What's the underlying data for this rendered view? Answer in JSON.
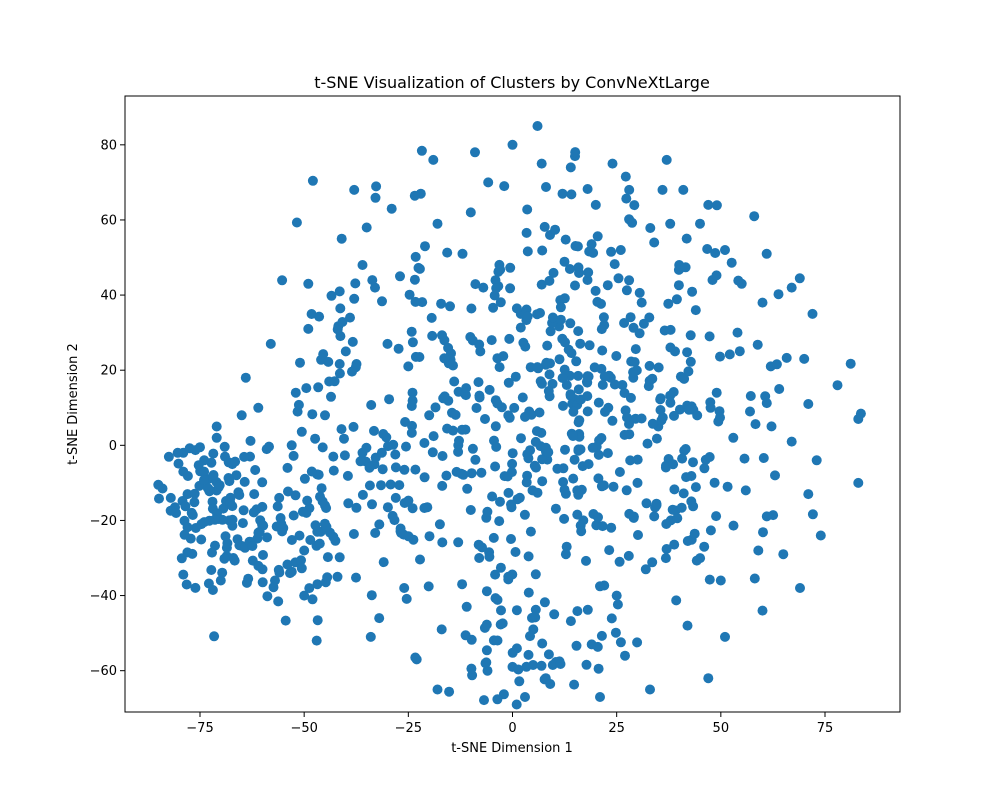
{
  "chart_data": {
    "type": "scatter",
    "title": "t-SNE Visualization of Clusters by ConvNeXtLarge",
    "xlabel": "t-SNE Dimension 1",
    "ylabel": "t-SNE Dimension 2",
    "xlim": [
      -93,
      93
    ],
    "ylim": [
      -71,
      93
    ],
    "xticks": [
      -75,
      -50,
      -25,
      0,
      25,
      50,
      75
    ],
    "yticks": [
      -60,
      -40,
      -20,
      0,
      20,
      40,
      60,
      80
    ],
    "grid": false,
    "legend": "none",
    "point_color": "#1f77b4",
    "seed": 20240611,
    "points": [
      [
        -85,
        -10.5
      ],
      [
        -84,
        -11.5
      ],
      [
        -82,
        -14
      ],
      [
        -81,
        -16.5
      ],
      [
        -79,
        -2
      ],
      [
        -79,
        -7
      ],
      [
        -78,
        -13
      ],
      [
        -77,
        -18
      ],
      [
        -76,
        -22
      ],
      [
        -75,
        -0.5
      ],
      [
        -74,
        -4
      ],
      [
        -73,
        -9
      ],
      [
        -72,
        -15
      ],
      [
        -71,
        5
      ],
      [
        -71,
        2
      ],
      [
        -70,
        -36
      ],
      [
        -69,
        -3
      ],
      [
        -68,
        -20
      ],
      [
        -67,
        -30
      ],
      [
        -66,
        -25
      ],
      [
        -65,
        8
      ],
      [
        -64,
        18
      ],
      [
        -63,
        -3
      ],
      [
        -62,
        -13
      ],
      [
        -61,
        10
      ],
      [
        -60,
        -33
      ],
      [
        -59,
        -1
      ],
      [
        -58,
        27
      ],
      [
        -57,
        -36
      ],
      [
        -56,
        -14
      ],
      [
        -55,
        -22
      ],
      [
        -54,
        -6
      ],
      [
        -53,
        0
      ],
      [
        -52,
        14
      ],
      [
        -51,
        22
      ],
      [
        -50,
        -40
      ],
      [
        -50,
        -28
      ],
      [
        -49,
        43
      ],
      [
        -49,
        31
      ],
      [
        -48,
        -41
      ],
      [
        -47,
        -52
      ],
      [
        -46,
        -23
      ],
      [
        -45,
        8
      ],
      [
        -45,
        -16
      ],
      [
        -44,
        17
      ],
      [
        -43,
        -3
      ],
      [
        -42,
        -35
      ],
      [
        -41,
        55
      ],
      [
        -40,
        25
      ],
      [
        -39,
        34
      ],
      [
        -38,
        68
      ],
      [
        -38,
        39
      ],
      [
        -36,
        48
      ],
      [
        -36,
        -2
      ],
      [
        -35,
        58
      ],
      [
        -34,
        -51
      ],
      [
        -33,
        42
      ],
      [
        -32,
        -46
      ],
      [
        -31,
        3
      ],
      [
        -30,
        27
      ],
      [
        -29,
        63
      ],
      [
        -28,
        -14
      ],
      [
        -27,
        45
      ],
      [
        -26,
        -38
      ],
      [
        -25,
        21
      ],
      [
        -24,
        14
      ],
      [
        -23,
        -57
      ],
      [
        -22,
        67
      ],
      [
        -21,
        53
      ],
      [
        -20,
        8
      ],
      [
        -19,
        76
      ],
      [
        -18,
        -65
      ],
      [
        -18,
        59
      ],
      [
        -17,
        -49
      ],
      [
        -16,
        23
      ],
      [
        -15,
        37
      ],
      [
        -14,
        17
      ],
      [
        -13,
        0
      ],
      [
        -12,
        51
      ],
      [
        -11,
        -43
      ],
      [
        -10,
        62
      ],
      [
        -9,
        78
      ],
      [
        -8,
        -30
      ],
      [
        -7,
        42
      ],
      [
        -6,
        -60
      ],
      [
        -5,
        28
      ],
      [
        -4,
        12
      ],
      [
        -3,
        -15
      ],
      [
        -2,
        69
      ],
      [
        -1,
        -35
      ],
      [
        0,
        80
      ],
      [
        0,
        -59
      ],
      [
        1,
        -69
      ],
      [
        2,
        35
      ],
      [
        3,
        -67
      ],
      [
        4,
        9
      ],
      [
        5,
        -49
      ],
      [
        6,
        85
      ],
      [
        7,
        75
      ],
      [
        8,
        -62
      ],
      [
        9,
        56
      ],
      [
        10,
        -45
      ],
      [
        12,
        67
      ],
      [
        13,
        -27
      ],
      [
        14,
        74
      ],
      [
        15,
        77
      ],
      [
        16,
        3
      ],
      [
        17,
        -20
      ],
      [
        18,
        44
      ],
      [
        19,
        -53
      ],
      [
        20,
        64
      ],
      [
        21,
        -67
      ],
      [
        22,
        32
      ],
      [
        23,
        10
      ],
      [
        24,
        75
      ],
      [
        25,
        -40
      ],
      [
        26,
        52
      ],
      [
        27,
        -56
      ],
      [
        28,
        68
      ],
      [
        29,
        18
      ],
      [
        30,
        -10
      ],
      [
        31,
        38
      ],
      [
        32,
        -33
      ],
      [
        33,
        -65
      ],
      [
        34,
        54
      ],
      [
        35,
        5
      ],
      [
        36,
        68
      ],
      [
        37,
        76
      ],
      [
        38,
        -20
      ],
      [
        39,
        25
      ],
      [
        40,
        48
      ],
      [
        41,
        68
      ],
      [
        42,
        -48
      ],
      [
        43,
        10
      ],
      [
        44,
        36
      ],
      [
        45,
        59
      ],
      [
        46,
        -27
      ],
      [
        47,
        64
      ],
      [
        47,
        -62
      ],
      [
        48,
        44
      ],
      [
        49,
        14
      ],
      [
        50,
        -36
      ],
      [
        51,
        52
      ],
      [
        51,
        -51
      ],
      [
        53,
        2
      ],
      [
        54,
        30
      ],
      [
        55,
        43
      ],
      [
        56,
        -12
      ],
      [
        57,
        9
      ],
      [
        58,
        61
      ],
      [
        59,
        -28
      ],
      [
        60,
        38
      ],
      [
        60,
        -44
      ],
      [
        61,
        51
      ],
      [
        62,
        21
      ],
      [
        63,
        -8
      ],
      [
        64,
        15
      ],
      [
        65,
        -29
      ],
      [
        67,
        42
      ],
      [
        67,
        1
      ],
      [
        69,
        -38
      ],
      [
        70,
        23
      ],
      [
        71,
        11
      ],
      [
        71,
        -13
      ],
      [
        72,
        35
      ],
      [
        73,
        -4
      ],
      [
        74,
        -24
      ],
      [
        78,
        16
      ],
      [
        83,
        7
      ],
      [
        83,
        -10
      ]
    ]
  }
}
